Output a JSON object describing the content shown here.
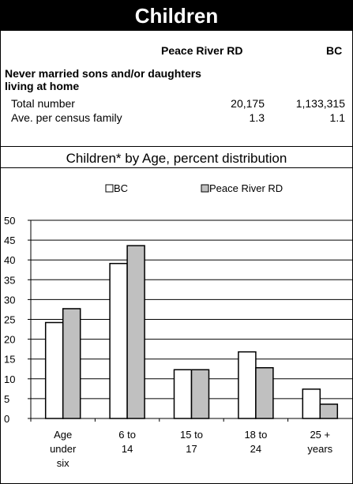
{
  "title": "Children",
  "table": {
    "col_region": "Peace River RD",
    "col_bc": "BC",
    "section": "Never married sons and/or daughters living at home",
    "rows": [
      {
        "label": "Total number",
        "region": "20,175",
        "bc": "1,133,315"
      },
      {
        "label": "Ave. per census family",
        "region": "1.3",
        "bc": "1.1"
      }
    ]
  },
  "colors": {
    "bc": "#ffffff",
    "region": "#c0c0c0",
    "outline": "#000000"
  },
  "chart_data": {
    "type": "bar",
    "title": "Children* by Age, percent distribution",
    "categories": [
      [
        "Age",
        "under",
        "six"
      ],
      [
        "6 to",
        "14"
      ],
      [
        "15 to",
        "17"
      ],
      [
        "18 to",
        "24"
      ],
      [
        "25 +",
        "years"
      ]
    ],
    "series": [
      {
        "name": "BC",
        "values": [
          24.2,
          39.1,
          12.3,
          16.8,
          7.4
        ]
      },
      {
        "name": "Peace River RD",
        "values": [
          27.7,
          43.6,
          12.3,
          12.8,
          3.6
        ]
      }
    ],
    "ylim": [
      0,
      50
    ],
    "yticks": [
      0,
      5,
      10,
      15,
      20,
      25,
      30,
      35,
      40,
      45,
      50
    ],
    "grid": true,
    "legend": "top"
  }
}
